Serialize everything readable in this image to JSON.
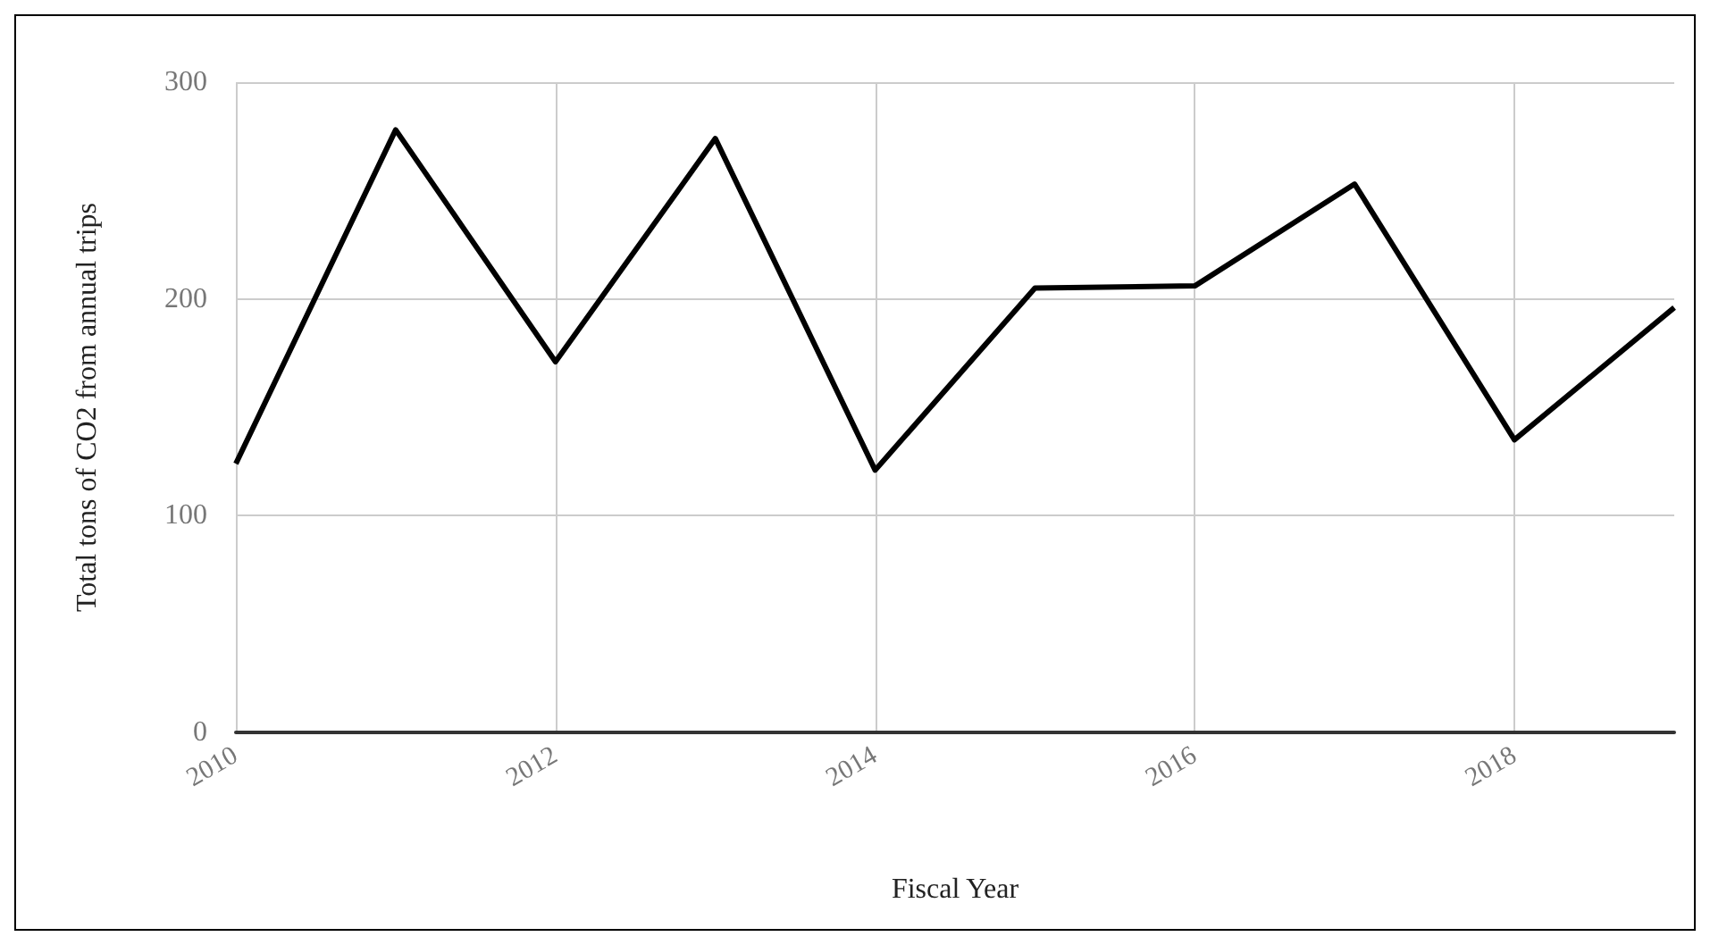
{
  "chart_data": {
    "type": "line",
    "xlabel": "Fiscal Year",
    "ylabel": "Total tons of CO2 from annual trips",
    "x": [
      2010,
      2011,
      2012,
      2013,
      2014,
      2015,
      2016,
      2017,
      2018,
      2019
    ],
    "series": [
      {
        "color": "#000000",
        "values": [
          124,
          278,
          171,
          274,
          121,
          205,
          206,
          253,
          135,
          196
        ]
      }
    ],
    "xlim": [
      2010,
      2019
    ],
    "xticks": [
      2010,
      2012,
      2014,
      2016,
      2018
    ],
    "ylim": [
      0,
      300
    ],
    "yticks": [
      0,
      100,
      200,
      300
    ],
    "grid": true,
    "marker": "none",
    "line_style": "solid"
  }
}
